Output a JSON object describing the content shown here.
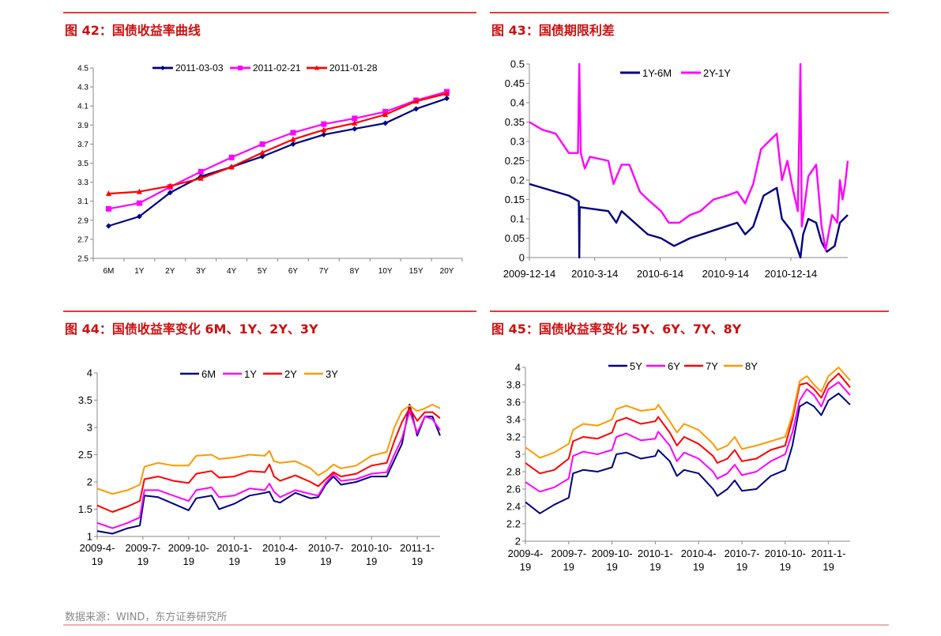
{
  "headings": {
    "fig42": "图 42：国债收益率曲线",
    "fig43": "图 43：国债期限利差",
    "fig44": "图 44：国债收益率变化 6M、1Y、2Y、3Y",
    "fig45": "图 45：国债收益率变化 5Y、6Y、7Y、8Y"
  },
  "footer": "数据来源：WIND，东方证券研究所",
  "colors": {
    "navy": "#000080",
    "magenta": "#ff00ff",
    "red": "#ff0000",
    "orange": "#ff9900",
    "heading": "#cc1010"
  },
  "chart_data": [
    {
      "id": "fig42",
      "type": "line",
      "title": "国债收益率曲线",
      "categories": [
        "6M",
        "1Y",
        "2Y",
        "3Y",
        "4Y",
        "5Y",
        "6Y",
        "7Y",
        "8Y",
        "10Y",
        "15Y",
        "20Y"
      ],
      "ylim": [
        2.5,
        4.5
      ],
      "yticks": [
        "2.5",
        "2.7",
        "2.9",
        "3.1",
        "3.3",
        "3.5",
        "3.7",
        "3.9",
        "4.1",
        "4.3",
        "4.5"
      ],
      "legend": "top-center",
      "series": [
        {
          "name": "2011-03-03",
          "color": "#000080",
          "marker": "diamond",
          "values": [
            2.84,
            2.94,
            3.19,
            3.36,
            3.46,
            3.57,
            3.7,
            3.8,
            3.86,
            3.92,
            4.07,
            4.18
          ]
        },
        {
          "name": "2011-02-21",
          "color": "#ff00ff",
          "marker": "square",
          "values": [
            3.02,
            3.08,
            3.25,
            3.41,
            3.56,
            3.7,
            3.82,
            3.91,
            3.97,
            4.04,
            4.16,
            4.25
          ]
        },
        {
          "name": "2011-01-28",
          "color": "#ff0000",
          "marker": "triangle",
          "values": [
            3.18,
            3.2,
            3.26,
            3.34,
            3.46,
            3.61,
            3.75,
            3.85,
            3.92,
            4.01,
            4.15,
            4.23
          ]
        }
      ]
    },
    {
      "id": "fig43",
      "type": "line",
      "title": "国债期限利差",
      "x_unit": "months since 2009-12-14",
      "xlim": [
        0,
        14.61
      ],
      "xticks": [
        {
          "x": 0,
          "label": "2009-12-14"
        },
        {
          "x": 3,
          "label": "2010-3-14"
        },
        {
          "x": 6,
          "label": "2010-6-14"
        },
        {
          "x": 9,
          "label": "2010-9-14"
        },
        {
          "x": 12,
          "label": "2010-12-14"
        }
      ],
      "ylim": [
        0,
        0.5
      ],
      "yticks": [
        "0",
        "0.05",
        "0.1",
        "0.15",
        "0.2",
        "0.25",
        "0.3",
        "0.35",
        "0.4",
        "0.45",
        "0.5"
      ],
      "legend": "top-center",
      "series": [
        {
          "name": "1Y-6M",
          "color": "#000080",
          "x": [
            0,
            1.81,
            2.27,
            2.29,
            2.31,
            2.35,
            3.62,
            3.99,
            4.23,
            5.43,
            6.04,
            6.64,
            7.37,
            8.45,
            9.54,
            9.9,
            10.27,
            10.75,
            11.35,
            11.59,
            12.01,
            12.32,
            12.44,
            12.56,
            12.8,
            13.16,
            13.41,
            13.65,
            14.01,
            14.25,
            14.61
          ],
          "values": [
            0.19,
            0.16,
            0.145,
            0,
            0.13,
            0.13,
            0.12,
            0.09,
            0.12,
            0.06,
            0.05,
            0.03,
            0.05,
            0.07,
            0.09,
            0.06,
            0.08,
            0.16,
            0.18,
            0.1,
            0.07,
            0.02,
            0,
            0.06,
            0.1,
            0.09,
            0.04,
            0.015,
            0.03,
            0.09,
            0.11
          ]
        },
        {
          "name": "2Y-1Y",
          "color": "#ff00ff",
          "x": [
            0,
            0.6,
            1.21,
            1.81,
            2.23,
            2.29,
            2.36,
            2.54,
            2.78,
            3.62,
            3.86,
            4.23,
            4.59,
            5.07,
            5.43,
            6.04,
            6.4,
            6.88,
            7.37,
            7.85,
            8.45,
            9.06,
            9.54,
            9.9,
            10.27,
            10.63,
            10.99,
            11.35,
            11.59,
            11.84,
            12.08,
            12.32,
            12.44,
            12.5,
            12.8,
            13.16,
            13.41,
            13.59,
            13.89,
            14.13,
            14.25,
            14.37,
            14.49,
            14.61
          ],
          "values": [
            0.35,
            0.33,
            0.32,
            0.27,
            0.27,
            0.5,
            0.27,
            0.23,
            0.26,
            0.25,
            0.19,
            0.24,
            0.24,
            0.17,
            0.15,
            0.12,
            0.09,
            0.09,
            0.11,
            0.12,
            0.15,
            0.16,
            0.17,
            0.14,
            0.19,
            0.28,
            0.3,
            0.32,
            0.2,
            0.25,
            0.18,
            0.12,
            0.5,
            0.08,
            0.21,
            0.24,
            0.08,
            0.02,
            0.11,
            0.09,
            0.2,
            0.15,
            0.19,
            0.25
          ]
        }
      ]
    },
    {
      "id": "fig44",
      "type": "line",
      "title": "国债收益率变化 6M、1Y、2Y、3Y",
      "x_unit": "months since 2009-04-19",
      "xlim": [
        0,
        22.5
      ],
      "xticks": [
        {
          "x": 0,
          "label": "2009-4-",
          "label2": "19"
        },
        {
          "x": 3,
          "label": "2009-7-",
          "label2": "19"
        },
        {
          "x": 6,
          "label": "2009-10-",
          "label2": "19"
        },
        {
          "x": 9,
          "label": "2010-1-",
          "label2": "19"
        },
        {
          "x": 12,
          "label": "2010-4-",
          "label2": "19"
        },
        {
          "x": 15,
          "label": "2010-7-",
          "label2": "19"
        },
        {
          "x": 18,
          "label": "2010-10-",
          "label2": "19"
        },
        {
          "x": 21,
          "label": "2011-1-",
          "label2": "19"
        }
      ],
      "ylim": [
        1,
        4
      ],
      "yticks": [
        "1",
        "1.5",
        "2",
        "2.5",
        "3",
        "3.5",
        "4"
      ],
      "legend": "top-center",
      "x": [
        0,
        1,
        2,
        2.8,
        3.1,
        4,
        5,
        6,
        6.5,
        7.5,
        8,
        9,
        10,
        11,
        11.3,
        11.6,
        12,
        13,
        14,
        14.5,
        15,
        15.5,
        16,
        17,
        18,
        19,
        19.5,
        20,
        20.5,
        21,
        21.5,
        22,
        22.5
      ],
      "series": [
        {
          "name": "6M",
          "color": "#000080",
          "values": [
            1.1,
            1.05,
            1.15,
            1.2,
            1.75,
            1.72,
            1.6,
            1.48,
            1.7,
            1.75,
            1.5,
            1.6,
            1.75,
            1.8,
            1.82,
            1.65,
            1.62,
            1.8,
            1.7,
            1.72,
            1.95,
            2.1,
            1.95,
            2.0,
            2.1,
            2.1,
            2.4,
            2.7,
            3.42,
            2.85,
            3.2,
            3.2,
            2.85
          ]
        },
        {
          "name": "1Y",
          "color": "#ff00ff",
          "values": [
            1.25,
            1.15,
            1.25,
            1.35,
            1.85,
            1.85,
            1.75,
            1.65,
            1.85,
            1.9,
            1.72,
            1.75,
            1.88,
            1.85,
            1.97,
            1.82,
            1.72,
            1.85,
            1.78,
            1.75,
            1.98,
            2.15,
            2.02,
            2.05,
            2.15,
            2.18,
            2.5,
            2.8,
            3.3,
            2.9,
            3.2,
            3.15,
            2.95
          ]
        },
        {
          "name": "2Y",
          "color": "#ff0000",
          "values": [
            1.57,
            1.45,
            1.55,
            1.65,
            2.05,
            2.1,
            2.02,
            1.98,
            2.15,
            2.2,
            2.08,
            2.1,
            2.2,
            2.18,
            2.32,
            2.1,
            2.02,
            2.12,
            2.0,
            1.92,
            2.05,
            2.18,
            2.1,
            2.15,
            2.3,
            2.35,
            2.75,
            3.1,
            3.35,
            3.12,
            3.28,
            3.28,
            3.17
          ]
        },
        {
          "name": "3Y",
          "color": "#ff9900",
          "values": [
            1.88,
            1.78,
            1.85,
            1.95,
            2.28,
            2.35,
            2.3,
            2.3,
            2.48,
            2.5,
            2.42,
            2.45,
            2.5,
            2.48,
            2.57,
            2.38,
            2.35,
            2.38,
            2.25,
            2.12,
            2.2,
            2.32,
            2.25,
            2.3,
            2.48,
            2.55,
            3.0,
            3.3,
            3.4,
            3.3,
            3.35,
            3.42,
            3.35
          ]
        }
      ]
    },
    {
      "id": "fig45",
      "type": "line",
      "title": "国债收益率变化 5Y、6Y、7Y、8Y",
      "x_unit": "months since 2009-04-19",
      "xlim": [
        0,
        22.5
      ],
      "xticks": [
        {
          "x": 0,
          "label": "2009-4-",
          "label2": "19"
        },
        {
          "x": 3,
          "label": "2009-7-",
          "label2": "19"
        },
        {
          "x": 6,
          "label": "2009-10-",
          "label2": "19"
        },
        {
          "x": 9,
          "label": "2010-1-",
          "label2": "19"
        },
        {
          "x": 12,
          "label": "2010-4-",
          "label2": "19"
        },
        {
          "x": 15,
          "label": "2010-7-",
          "label2": "19"
        },
        {
          "x": 18,
          "label": "2010-10-",
          "label2": "19"
        },
        {
          "x": 21,
          "label": "2011-1-",
          "label2": "19"
        }
      ],
      "ylim": [
        2,
        4
      ],
      "yticks": [
        "2",
        "2.2",
        "2.4",
        "2.6",
        "2.8",
        "3",
        "3.2",
        "3.4",
        "3.6",
        "3.8",
        "4"
      ],
      "legend": "top-center",
      "x": [
        0,
        1,
        2,
        3,
        3.3,
        4,
        5,
        6,
        6.3,
        7,
        8,
        9,
        9.2,
        10,
        10.5,
        11,
        12,
        13,
        13.3,
        14,
        14.5,
        15,
        16,
        17,
        18,
        18.5,
        19,
        19.5,
        20,
        20.5,
        21,
        21.7,
        22.5
      ],
      "series": [
        {
          "name": "5Y",
          "color": "#000080",
          "values": [
            2.45,
            2.32,
            2.42,
            2.5,
            2.78,
            2.82,
            2.8,
            2.85,
            3.0,
            3.02,
            2.95,
            2.98,
            3.05,
            2.92,
            2.75,
            2.82,
            2.78,
            2.6,
            2.52,
            2.6,
            2.7,
            2.58,
            2.6,
            2.75,
            2.82,
            3.1,
            3.55,
            3.6,
            3.55,
            3.45,
            3.62,
            3.7,
            3.57
          ]
        },
        {
          "name": "6Y",
          "color": "#ff00ff",
          "values": [
            2.68,
            2.57,
            2.62,
            2.72,
            2.98,
            3.03,
            3.0,
            3.05,
            3.2,
            3.24,
            3.16,
            3.18,
            3.26,
            3.1,
            2.92,
            3.02,
            2.95,
            2.8,
            2.72,
            2.78,
            2.88,
            2.76,
            2.8,
            2.92,
            3.0,
            3.25,
            3.62,
            3.75,
            3.68,
            3.55,
            3.75,
            3.83,
            3.68
          ]
        },
        {
          "name": "7Y",
          "color": "#ff0000",
          "values": [
            2.9,
            2.78,
            2.82,
            2.95,
            3.15,
            3.2,
            3.18,
            3.25,
            3.38,
            3.42,
            3.35,
            3.38,
            3.43,
            3.25,
            3.1,
            3.2,
            3.12,
            2.98,
            2.9,
            2.95,
            3.05,
            2.92,
            2.95,
            3.05,
            3.1,
            3.4,
            3.8,
            3.82,
            3.75,
            3.65,
            3.82,
            3.93,
            3.77
          ]
        },
        {
          "name": "8Y",
          "color": "#ff9900",
          "values": [
            3.08,
            2.96,
            3.02,
            3.12,
            3.28,
            3.35,
            3.33,
            3.4,
            3.52,
            3.56,
            3.5,
            3.52,
            3.57,
            3.38,
            3.25,
            3.35,
            3.28,
            3.12,
            3.05,
            3.1,
            3.2,
            3.06,
            3.1,
            3.15,
            3.2,
            3.45,
            3.84,
            3.9,
            3.8,
            3.72,
            3.9,
            4.0,
            3.85
          ]
        }
      ]
    }
  ]
}
